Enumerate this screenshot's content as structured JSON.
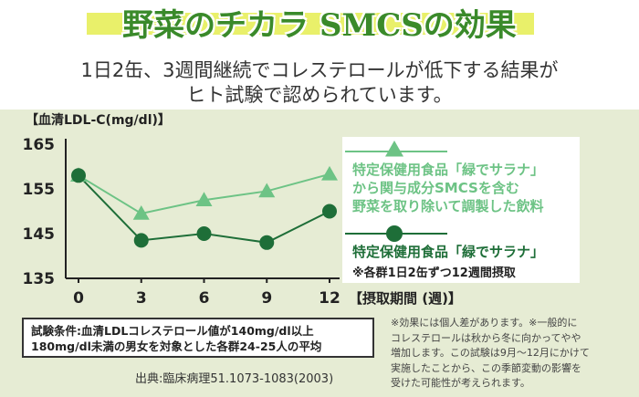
{
  "headline": "野菜のチカラ SMCSの効果",
  "subheadline_1": "1日2缶、3週間継続でコレステロールが低下する結果が",
  "subheadline_2": "ヒト試験で認められています。",
  "legend": {
    "series_a_lines": [
      "特定保健用食品「緑でサラナ」",
      "から関与成分SMCSを含む",
      "野菜を取り除いて調製した飲料"
    ],
    "series_b_line": "特定保健用食品「緑でサラナ」",
    "series_b_note": "※各群1日2缶ずつ12週間摂取"
  },
  "conditions_lines": [
    "試験条件:血清LDLコレステロール値が140mg/dl以上",
    "180mg/dl未満の男女を対象とした各群24-25人の平均"
  ],
  "source": "出典:臨床病理51.1073-1083(2003)",
  "footnote_lines": [
    "※効果には個人差があります。※一般的に",
    "コレステロールは秋から冬に向かってやや",
    "増加します。この試験は9月〜12月にかけて",
    "実施したことから、この季節変動の影響を",
    "受けた可能性が考えられます。"
  ],
  "colors": {
    "series_a": "#6dc385",
    "series_b": "#1e6e38",
    "title_green": "#3a8a2a",
    "panel_bg": "#e6ecd4",
    "title_band": "#e9f06a"
  },
  "chart_data": {
    "type": "line",
    "ylabel": "【血清LDL-C(mg/dl)】",
    "xlabel": "【摂取期間 (週)】",
    "x": [
      0,
      3,
      6,
      9,
      12
    ],
    "x_ticks": [
      "0",
      "3",
      "6",
      "9",
      "12"
    ],
    "y_ticks": [
      "165",
      "155",
      "145",
      "135"
    ],
    "ylim": [
      135,
      165
    ],
    "grid": false,
    "legend_position": "right",
    "series": [
      {
        "marker": "triangle",
        "values": [
          158,
          149.5,
          152.5,
          154.5,
          158.3
        ]
      },
      {
        "marker": "circle",
        "values": [
          158,
          143.5,
          145,
          143,
          150
        ]
      }
    ]
  }
}
